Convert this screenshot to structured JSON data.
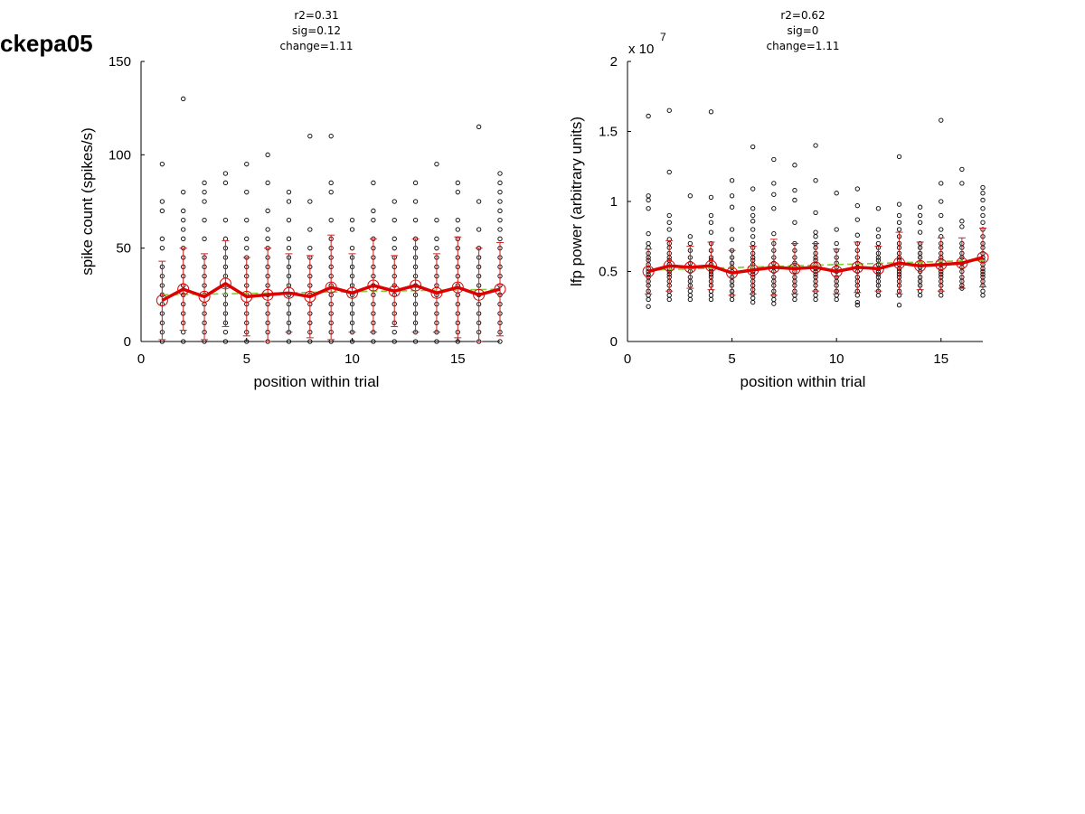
{
  "figure_title": "ckepa05",
  "colors": {
    "raw_points": "#000000",
    "mean": "#dd0000",
    "errorbar": "#cc2222",
    "fit": "#7fcc33",
    "smooth": "#dd0000"
  },
  "chart_data": [
    {
      "type": "scatter",
      "stats": [
        "r2=0.31",
        "sig=0.12",
        "change=1.11"
      ],
      "xlabel": "position within trial",
      "ylabel": "spike count (spikes/s)",
      "exponent_label": "",
      "xlim": [
        0,
        17
      ],
      "ylim": [
        0,
        150
      ],
      "xticks": [
        0,
        5,
        10,
        15
      ],
      "xtick_labels": [
        "0",
        "5",
        "10",
        "15"
      ],
      "yticks": [
        0,
        50,
        100,
        150
      ],
      "ytick_labels": [
        "0",
        "50",
        "100",
        "150"
      ],
      "grid": false,
      "positions": [
        1,
        2,
        3,
        4,
        5,
        6,
        7,
        8,
        9,
        10,
        11,
        12,
        13,
        14,
        15,
        16,
        17
      ],
      "means": [
        22,
        28,
        24,
        31,
        24,
        25,
        26,
        24,
        29,
        26,
        30,
        27,
        30,
        26,
        29,
        25,
        28
      ],
      "sd": [
        21,
        22,
        23,
        23,
        21,
        25,
        21,
        22,
        28,
        21,
        25,
        19,
        25,
        21,
        27,
        25,
        25
      ],
      "fit": [
        25,
        28
      ],
      "raw": [
        [
          0,
          5,
          10,
          15,
          20,
          25,
          30,
          35,
          40,
          50,
          55,
          70,
          75,
          95
        ],
        [
          0,
          5,
          10,
          15,
          20,
          25,
          30,
          35,
          40,
          45,
          50,
          55,
          60,
          65,
          70,
          80,
          130
        ],
        [
          0,
          5,
          10,
          15,
          20,
          25,
          30,
          35,
          40,
          45,
          55,
          65,
          75,
          80,
          85
        ],
        [
          0,
          5,
          10,
          15,
          20,
          25,
          30,
          35,
          40,
          45,
          50,
          55,
          65,
          85,
          90
        ],
        [
          0,
          5,
          10,
          15,
          20,
          25,
          30,
          35,
          40,
          45,
          50,
          55,
          65,
          80,
          95
        ],
        [
          0,
          5,
          10,
          15,
          20,
          25,
          30,
          35,
          40,
          45,
          50,
          55,
          60,
          70,
          85,
          100
        ],
        [
          0,
          5,
          10,
          15,
          20,
          25,
          30,
          35,
          40,
          45,
          50,
          55,
          65,
          75,
          80
        ],
        [
          0,
          5,
          10,
          15,
          20,
          25,
          30,
          35,
          40,
          45,
          50,
          60,
          75,
          110
        ],
        [
          0,
          5,
          10,
          15,
          20,
          25,
          30,
          35,
          40,
          45,
          50,
          55,
          65,
          80,
          85,
          110
        ],
        [
          0,
          5,
          10,
          15,
          20,
          25,
          30,
          35,
          40,
          45,
          50,
          60,
          65
        ],
        [
          0,
          5,
          10,
          15,
          20,
          25,
          30,
          35,
          40,
          45,
          50,
          55,
          65,
          70,
          85
        ],
        [
          0,
          5,
          10,
          15,
          20,
          25,
          30,
          35,
          40,
          45,
          50,
          55,
          65,
          75
        ],
        [
          0,
          5,
          10,
          15,
          20,
          25,
          30,
          35,
          40,
          45,
          50,
          55,
          65,
          75,
          85
        ],
        [
          0,
          5,
          10,
          15,
          20,
          25,
          30,
          35,
          40,
          45,
          50,
          55,
          65,
          95
        ],
        [
          0,
          5,
          10,
          15,
          20,
          25,
          30,
          35,
          40,
          45,
          50,
          55,
          60,
          65,
          80,
          85
        ],
        [
          0,
          5,
          10,
          15,
          20,
          25,
          30,
          35,
          40,
          45,
          50,
          60,
          75,
          115
        ],
        [
          0,
          5,
          10,
          15,
          20,
          25,
          30,
          35,
          40,
          45,
          50,
          55,
          60,
          65,
          70,
          75,
          80,
          85,
          90
        ]
      ]
    },
    {
      "type": "scatter",
      "stats": [
        "r2=0.62",
        "sig=0",
        "change=1.11"
      ],
      "xlabel": "position within trial",
      "ylabel": "lfp power (arbitrary units)",
      "exponent_label": "x 10",
      "exponent_power": "7",
      "xlim": [
        0,
        17
      ],
      "ylim": [
        0,
        2
      ],
      "xticks": [
        0,
        5,
        10,
        15
      ],
      "xtick_labels": [
        "0",
        "5",
        "10",
        "15"
      ],
      "yticks": [
        0,
        0.5,
        1,
        1.5,
        2
      ],
      "ytick_labels": [
        "0",
        "0.5",
        "1",
        "1.5",
        "2"
      ],
      "grid": false,
      "positions": [
        1,
        2,
        3,
        4,
        5,
        6,
        7,
        8,
        9,
        10,
        11,
        12,
        13,
        14,
        15,
        16,
        17
      ],
      "means": [
        0.5,
        0.54,
        0.53,
        0.54,
        0.49,
        0.51,
        0.53,
        0.52,
        0.53,
        0.5,
        0.53,
        0.52,
        0.56,
        0.54,
        0.55,
        0.56,
        0.6
      ],
      "sd": [
        0.16,
        0.18,
        0.15,
        0.17,
        0.16,
        0.17,
        0.2,
        0.18,
        0.17,
        0.16,
        0.18,
        0.16,
        0.22,
        0.17,
        0.19,
        0.18,
        0.21
      ],
      "fit": [
        0.51,
        0.58
      ],
      "raw": [
        [
          0.25,
          0.3,
          0.33,
          0.36,
          0.4,
          0.43,
          0.46,
          0.48,
          0.5,
          0.52,
          0.55,
          0.58,
          0.6,
          0.63,
          0.67,
          0.7,
          0.77,
          0.95,
          1.01,
          1.04,
          1.61
        ],
        [
          0.3,
          0.33,
          0.36,
          0.4,
          0.43,
          0.46,
          0.48,
          0.5,
          0.52,
          0.55,
          0.58,
          0.6,
          0.63,
          0.67,
          0.7,
          0.73,
          0.8,
          0.85,
          0.9,
          1.21,
          1.65
        ],
        [
          0.3,
          0.33,
          0.36,
          0.4,
          0.43,
          0.46,
          0.5,
          0.53,
          0.56,
          0.6,
          0.65,
          0.7,
          0.75,
          1.04
        ],
        [
          0.3,
          0.33,
          0.36,
          0.4,
          0.43,
          0.46,
          0.48,
          0.5,
          0.52,
          0.55,
          0.58,
          0.6,
          0.65,
          0.7,
          0.78,
          0.85,
          0.9,
          1.03,
          1.64
        ],
        [
          0.3,
          0.33,
          0.36,
          0.4,
          0.43,
          0.46,
          0.5,
          0.53,
          0.56,
          0.6,
          0.65,
          0.73,
          0.8,
          0.96,
          1.04,
          1.15
        ],
        [
          0.28,
          0.31,
          0.34,
          0.37,
          0.4,
          0.43,
          0.46,
          0.48,
          0.5,
          0.52,
          0.55,
          0.58,
          0.6,
          0.63,
          0.67,
          0.7,
          0.75,
          0.8,
          0.86,
          0.9,
          0.95,
          1.09,
          1.39
        ],
        [
          0.27,
          0.3,
          0.33,
          0.36,
          0.4,
          0.43,
          0.46,
          0.5,
          0.53,
          0.56,
          0.6,
          0.65,
          0.7,
          0.77,
          0.95,
          1.05,
          1.13,
          1.3
        ],
        [
          0.3,
          0.33,
          0.36,
          0.4,
          0.43,
          0.46,
          0.5,
          0.53,
          0.56,
          0.6,
          0.65,
          0.7,
          0.85,
          1.01,
          1.08,
          1.26
        ],
        [
          0.3,
          0.33,
          0.36,
          0.4,
          0.43,
          0.46,
          0.48,
          0.5,
          0.52,
          0.55,
          0.58,
          0.6,
          0.63,
          0.67,
          0.7,
          0.75,
          0.78,
          0.92,
          1.15,
          1.4
        ],
        [
          0.3,
          0.33,
          0.36,
          0.4,
          0.43,
          0.46,
          0.5,
          0.53,
          0.56,
          0.6,
          0.65,
          0.7,
          0.8,
          1.06
        ],
        [
          0.26,
          0.28,
          0.33,
          0.36,
          0.4,
          0.43,
          0.46,
          0.5,
          0.53,
          0.56,
          0.6,
          0.65,
          0.7,
          0.76,
          0.87,
          0.97,
          1.09
        ],
        [
          0.33,
          0.36,
          0.4,
          0.43,
          0.46,
          0.48,
          0.5,
          0.52,
          0.55,
          0.58,
          0.6,
          0.63,
          0.67,
          0.7,
          0.75,
          0.8,
          0.95
        ],
        [
          0.26,
          0.33,
          0.36,
          0.4,
          0.43,
          0.46,
          0.48,
          0.5,
          0.52,
          0.55,
          0.58,
          0.6,
          0.63,
          0.67,
          0.7,
          0.75,
          0.8,
          0.85,
          0.9,
          0.98,
          1.32
        ],
        [
          0.33,
          0.36,
          0.4,
          0.43,
          0.46,
          0.5,
          0.53,
          0.56,
          0.6,
          0.63,
          0.67,
          0.7,
          0.78,
          0.85,
          0.9,
          0.96
        ],
        [
          0.33,
          0.36,
          0.4,
          0.43,
          0.46,
          0.48,
          0.5,
          0.52,
          0.55,
          0.58,
          0.6,
          0.63,
          0.67,
          0.7,
          0.75,
          0.8,
          0.9,
          1.0,
          1.13,
          1.58
        ],
        [
          0.38,
          0.4,
          0.43,
          0.46,
          0.5,
          0.53,
          0.56,
          0.6,
          0.63,
          0.67,
          0.7,
          0.82,
          0.86,
          1.13,
          1.23
        ],
        [
          0.33,
          0.36,
          0.4,
          0.43,
          0.46,
          0.48,
          0.5,
          0.52,
          0.55,
          0.58,
          0.6,
          0.63,
          0.67,
          0.7,
          0.75,
          0.8,
          0.85,
          0.9,
          0.95,
          1.01,
          1.06,
          1.1
        ]
      ]
    }
  ]
}
